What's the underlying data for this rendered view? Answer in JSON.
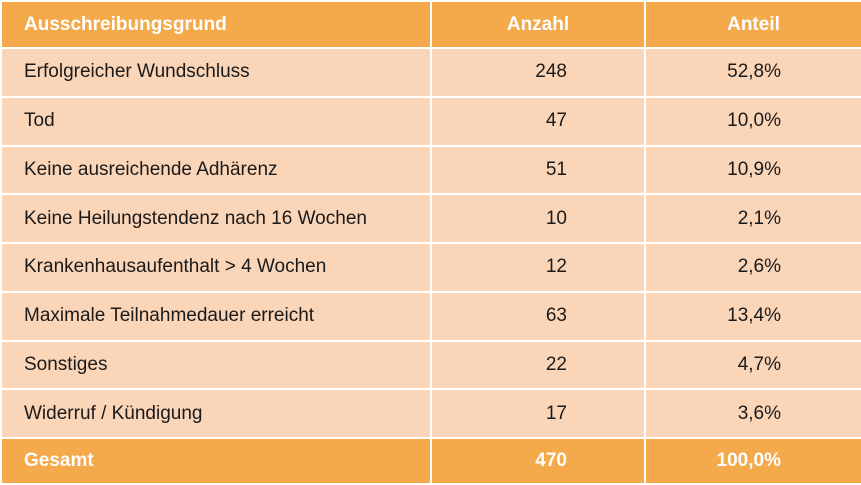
{
  "table": {
    "headers": {
      "reason": "Ausschreibungsgrund",
      "count": "Anzahl",
      "share": "Anteil"
    },
    "rows": [
      {
        "reason": "Erfolgreicher Wundschluss",
        "count": "248",
        "share": "52,8%"
      },
      {
        "reason": "Tod",
        "count": "47",
        "share": "10,0%"
      },
      {
        "reason": "Keine ausreichende Adhärenz",
        "count": "51",
        "share": "10,9%"
      },
      {
        "reason": "Keine Heilungstendenz nach 16 Wochen",
        "count": "10",
        "share": "2,1%"
      },
      {
        "reason": "Krankenhausaufenthalt > 4 Wochen",
        "count": "12",
        "share": "2,6%"
      },
      {
        "reason": "Maximale Teilnahmedauer erreicht",
        "count": "63",
        "share": "13,4%"
      },
      {
        "reason": "Sonstiges",
        "count": "22",
        "share": "4,7%"
      },
      {
        "reason": "Widerruf / Kündigung",
        "count": "17",
        "share": "3,6%"
      }
    ],
    "total": {
      "reason": "Gesamt",
      "count": "470",
      "share": "100,0%"
    }
  },
  "colors": {
    "header_bg": "#f4a94b",
    "row_bg": "#fbd5b8",
    "border": "#ffffff"
  }
}
